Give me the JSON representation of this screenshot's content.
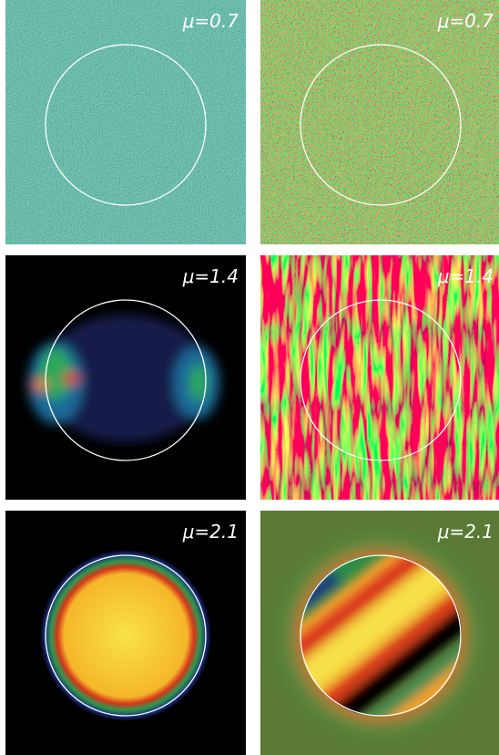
{
  "panels": [
    {
      "label": "μ=0.7"
    },
    {
      "label": "μ=0.7"
    },
    {
      "label": "μ=1.4"
    },
    {
      "label": "μ=1.4"
    },
    {
      "label": "μ=2.1"
    },
    {
      "label": "μ=2.1"
    }
  ]
}
